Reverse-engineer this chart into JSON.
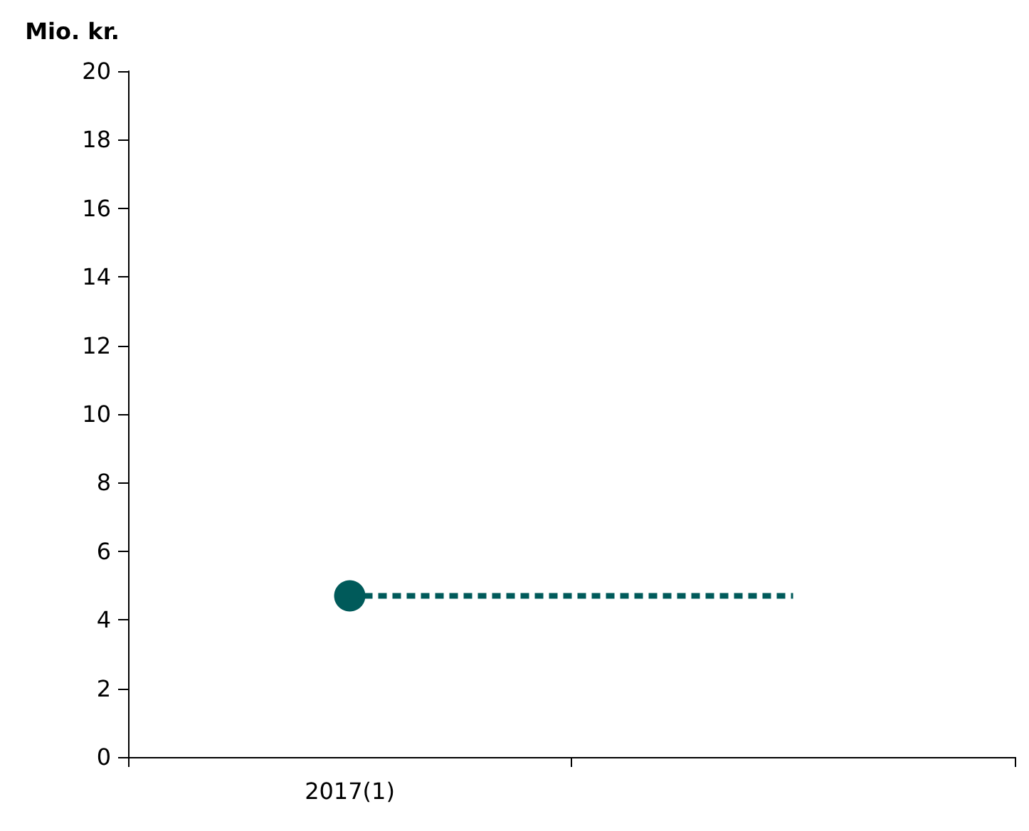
{
  "chart_data": {
    "type": "line",
    "ylabel": "Mio. kr.",
    "categories": [
      "2017(1)",
      null
    ],
    "series": [
      {
        "type": "scatter",
        "color": "#005a5a",
        "values": [
          4.7,
          null
        ],
        "marker": "circle"
      },
      {
        "color": "#005a5a",
        "values": [
          4.7,
          4.7
        ],
        "marker": "none",
        "line_style": "dashed"
      }
    ],
    "ylim": [
      0,
      20
    ],
    "yticks": [
      0,
      2,
      4,
      6,
      8,
      10,
      12,
      14,
      16,
      18,
      20
    ],
    "grid": false
  }
}
